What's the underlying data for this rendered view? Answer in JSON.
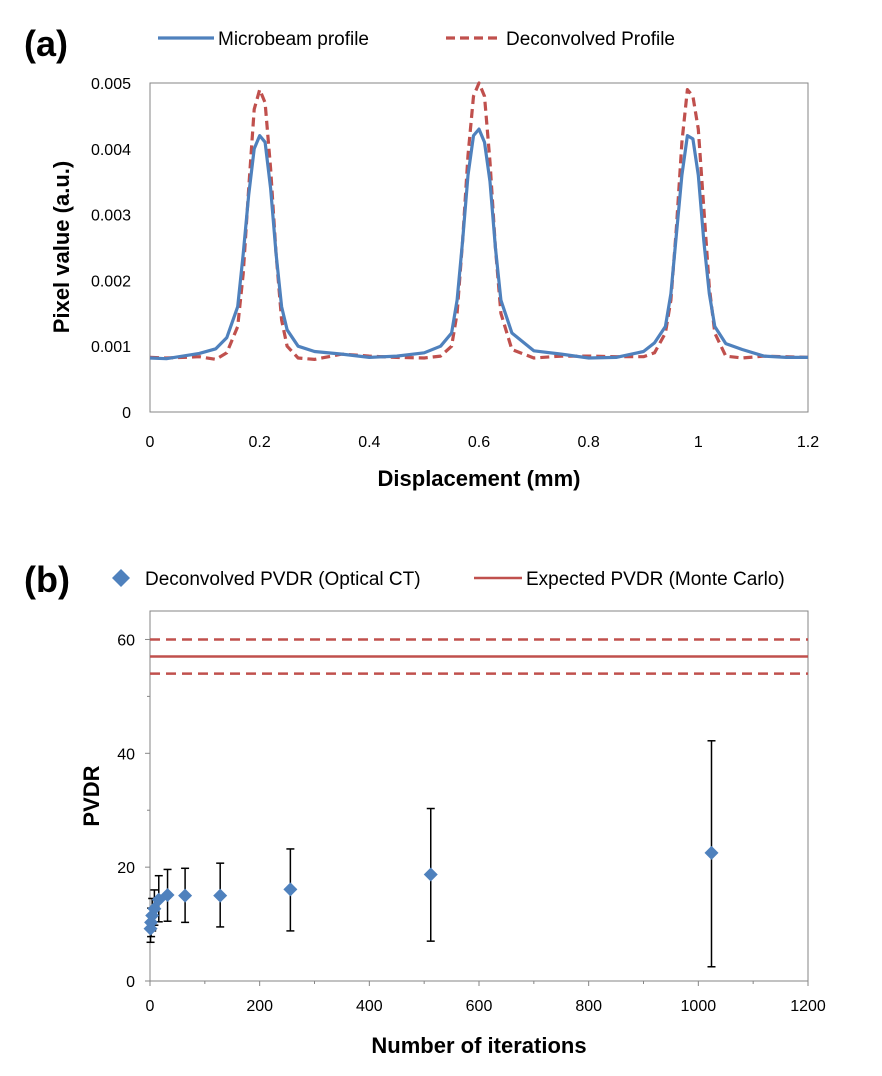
{
  "chart_data": [
    {
      "panel": "(a)",
      "type": "line",
      "xlabel": "Displacement (mm)",
      "ylabel": "Pixel value (a.u.)",
      "xlim": [
        0,
        1.2
      ],
      "ylim": [
        0,
        0.005
      ],
      "xticks": [
        "0",
        "0.2",
        "0.4",
        "0.6",
        "0.8",
        "1",
        "1.2"
      ],
      "yticks": [
        "0",
        "0.001",
        "0.002",
        "0.003",
        "0.004",
        "0.005"
      ],
      "grid": false,
      "legend_position": "top",
      "series": [
        {
          "name": "Microbeam profile",
          "color": "#4f81bd",
          "style": "solid",
          "x": [
            0,
            0.03,
            0.06,
            0.09,
            0.12,
            0.14,
            0.16,
            0.17,
            0.18,
            0.19,
            0.2,
            0.21,
            0.22,
            0.23,
            0.24,
            0.25,
            0.27,
            0.3,
            0.35,
            0.4,
            0.45,
            0.5,
            0.53,
            0.55,
            0.56,
            0.57,
            0.58,
            0.59,
            0.6,
            0.61,
            0.62,
            0.63,
            0.64,
            0.66,
            0.7,
            0.75,
            0.8,
            0.85,
            0.9,
            0.92,
            0.94,
            0.95,
            0.96,
            0.97,
            0.98,
            0.99,
            1.0,
            1.01,
            1.02,
            1.03,
            1.05,
            1.08,
            1.12,
            1.16,
            1.2
          ],
          "y": [
            0.00082,
            0.00081,
            0.00085,
            0.00089,
            0.00096,
            0.00113,
            0.0016,
            0.0024,
            0.0033,
            0.004,
            0.0042,
            0.0041,
            0.0034,
            0.0024,
            0.0016,
            0.00125,
            0.001,
            0.00092,
            0.00088,
            0.00083,
            0.00085,
            0.0009,
            0.001,
            0.0012,
            0.0017,
            0.0026,
            0.0036,
            0.0042,
            0.0043,
            0.0041,
            0.0035,
            0.0025,
            0.0017,
            0.0012,
            0.00093,
            0.00088,
            0.00082,
            0.00083,
            0.00092,
            0.00105,
            0.0013,
            0.0018,
            0.0027,
            0.0036,
            0.0042,
            0.00415,
            0.0036,
            0.0026,
            0.0018,
            0.0013,
            0.00104,
            0.00095,
            0.00085,
            0.00083,
            0.00083
          ]
        },
        {
          "name": "Deconvolved Profile",
          "color": "#c0504d",
          "style": "dashed",
          "x": [
            0,
            0.03,
            0.06,
            0.09,
            0.12,
            0.14,
            0.16,
            0.17,
            0.18,
            0.19,
            0.2,
            0.21,
            0.22,
            0.23,
            0.24,
            0.25,
            0.27,
            0.3,
            0.35,
            0.4,
            0.45,
            0.5,
            0.53,
            0.55,
            0.56,
            0.57,
            0.58,
            0.59,
            0.6,
            0.61,
            0.62,
            0.63,
            0.64,
            0.66,
            0.7,
            0.75,
            0.8,
            0.85,
            0.9,
            0.92,
            0.94,
            0.95,
            0.96,
            0.97,
            0.98,
            0.99,
            1.0,
            1.01,
            1.02,
            1.03,
            1.05,
            1.08,
            1.12,
            1.16,
            1.2
          ],
          "y": [
            0.00083,
            0.00082,
            0.00083,
            0.00084,
            0.0008,
            0.0009,
            0.0013,
            0.0021,
            0.0034,
            0.0046,
            0.0049,
            0.0047,
            0.0037,
            0.0024,
            0.0014,
            0.001,
            0.00082,
            0.0008,
            0.00088,
            0.00085,
            0.00083,
            0.00082,
            0.00085,
            0.001,
            0.0015,
            0.0026,
            0.0039,
            0.0048,
            0.005,
            0.0048,
            0.0038,
            0.0025,
            0.0015,
            0.00095,
            0.00082,
            0.00085,
            0.00085,
            0.00084,
            0.00084,
            0.0009,
            0.0012,
            0.0017,
            0.0028,
            0.0041,
            0.0049,
            0.0048,
            0.0043,
            0.0031,
            0.0019,
            0.0012,
            0.00085,
            0.00082,
            0.00085,
            0.00084,
            0.00083
          ]
        }
      ]
    },
    {
      "panel": "(b)",
      "type": "scatter",
      "xlabel": "Number of iterations",
      "ylabel": "PVDR",
      "xlim": [
        0,
        1200
      ],
      "ylim": [
        0,
        65
      ],
      "xticks": [
        "0",
        "200",
        "400",
        "600",
        "800",
        "1000",
        "1200"
      ],
      "yticks": [
        "0",
        "20",
        "40",
        "60"
      ],
      "grid": false,
      "legend_position": "top",
      "series": [
        {
          "name": "Deconvolved PVDR (Optical CT)",
          "color": "#4f81bd",
          "marker": "diamond",
          "x": [
            1,
            2,
            4,
            8,
            16,
            32,
            64,
            128,
            256,
            512,
            1024
          ],
          "y": [
            9.2,
            10.3,
            11.5,
            12.7,
            14.3,
            15.1,
            15.0,
            15.0,
            16.1,
            18.7,
            22.5
          ],
          "err_low": [
            6.8,
            7.8,
            8.8,
            9.8,
            10.4,
            10.5,
            10.3,
            9.5,
            8.8,
            7.0,
            2.5
          ],
          "err_high": [
            11.5,
            12.8,
            14.5,
            16.0,
            18.5,
            19.6,
            19.8,
            20.7,
            23.2,
            30.3,
            42.2
          ]
        },
        {
          "name": "Expected PVDR (Monte Carlo)",
          "color": "#c0504d",
          "style": "solid",
          "value": 57,
          "bounds": [
            54,
            60
          ]
        }
      ]
    }
  ]
}
